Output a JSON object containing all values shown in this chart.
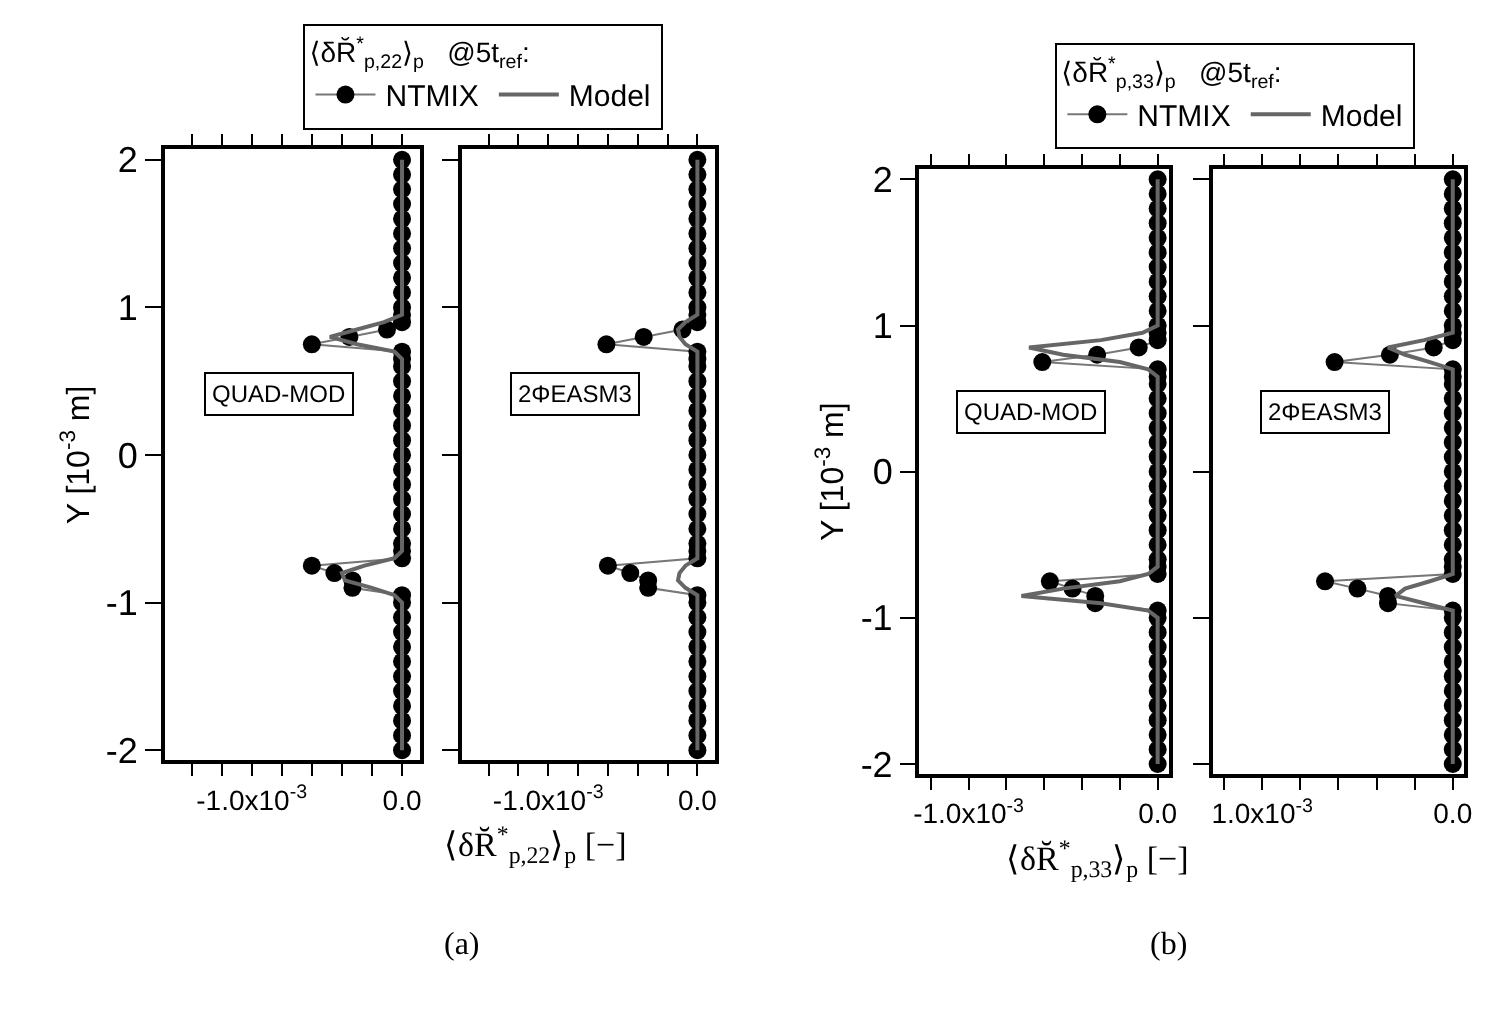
{
  "chart_data": [
    {
      "type": "line",
      "orientation": "horizontal",
      "xlabel": "⟨δR̆$^{*}$$_{p,22}$⟩$_{p}$ [−]",
      "ylabel": "Y [10$^{-3}$ m]",
      "legend": "top",
      "legend_title": "⟨δR̆$^{*}$$_{p,22}$⟩$_{p}$   @5t$_{ref}$:",
      "annotations": [
        "QUAD-MOD",
        "(a)"
      ],
      "xlim": [
        -0.00158,
        0.00012
      ],
      "ylim": [
        -2.07,
        2.07
      ],
      "xticks": [
        {
          "value": -0.0014,
          "label": null
        },
        {
          "value": -0.0012,
          "label": null
        },
        {
          "value": -0.001,
          "label": "-1.0x10$^{-3}$"
        },
        {
          "value": -0.0008,
          "label": null
        },
        {
          "value": -0.0006,
          "label": null
        },
        {
          "value": -0.0004,
          "label": null
        },
        {
          "value": -0.0002,
          "label": null
        },
        {
          "value": 0,
          "label": "0.0"
        }
      ],
      "yticks": [
        -2,
        -1,
        0,
        1,
        2
      ],
      "grid": false,
      "series": [
        {
          "name": "NTMIX",
          "color": "#000000",
          "marker": "circle",
          "x": [
            -2,
            -1.9,
            -1.8,
            -1.7,
            -1.6,
            -1.5,
            -1.4,
            -1.3,
            -1.2,
            -1.1,
            -1,
            -0.95,
            -0.9,
            -0.85,
            -0.8,
            -0.75,
            -0.7,
            -0.65,
            -0.6,
            -0.5,
            -0.4,
            -0.3,
            -0.2,
            -0.1,
            0,
            0.1,
            0.2,
            0.3,
            0.4,
            0.5,
            0.6,
            0.65,
            0.7,
            0.75,
            0.8,
            0.85,
            0.9,
            0.95,
            1,
            1.1,
            1.2,
            1.3,
            1.4,
            1.5,
            1.6,
            1.7,
            1.8,
            1.9,
            2
          ],
          "values": [
            0,
            0,
            0,
            0,
            0,
            0,
            0,
            0,
            0,
            0,
            0,
            0,
            -0.00033,
            -0.00033,
            -0.00045,
            -0.0006,
            0,
            0,
            0,
            0,
            0,
            0,
            0,
            0,
            0,
            0,
            0,
            0,
            0,
            0,
            0,
            0,
            0,
            -0.0006,
            -0.00035,
            -0.0001,
            0,
            0,
            0,
            0,
            0,
            0,
            0,
            0,
            0,
            0,
            0,
            0,
            0
          ]
        },
        {
          "name": "Model",
          "color": "#666666",
          "marker": "none",
          "x": [
            -2,
            -1,
            -0.95,
            -0.9,
            -0.85,
            -0.8,
            -0.75,
            -0.7,
            -0.65,
            0.65,
            0.7,
            0.75,
            0.8,
            0.85,
            0.9,
            0.95,
            1,
            2
          ],
          "values": [
            0,
            0,
            -5e-05,
            -0.0002,
            -0.00038,
            -0.0004,
            -0.00025,
            -5e-05,
            0,
            0,
            -5e-05,
            -0.0003,
            -0.00048,
            -0.0003,
            -0.00012,
            0,
            0,
            0
          ]
        }
      ]
    },
    {
      "type": "line",
      "orientation": "horizontal",
      "tick_labels": "x",
      "annotations": [
        "2ΦEASM3"
      ],
      "xlim": [
        -0.00158,
        0.00012
      ],
      "ylim": [
        -2.07,
        2.07
      ],
      "xticks": [
        {
          "value": -0.0014,
          "label": null
        },
        {
          "value": -0.0012,
          "label": null
        },
        {
          "value": -0.001,
          "label": "-1.0x10$^{-3}$"
        },
        {
          "value": -0.0008,
          "label": null
        },
        {
          "value": -0.0006,
          "label": null
        },
        {
          "value": -0.0004,
          "label": null
        },
        {
          "value": -0.0002,
          "label": null
        },
        {
          "value": 0,
          "label": "0.0"
        }
      ],
      "yticks": [
        -2,
        -1,
        0,
        1,
        2
      ],
      "grid": false,
      "series": [
        {
          "color": "#000000",
          "marker": "circle",
          "x": [
            -2,
            -1.9,
            -1.8,
            -1.7,
            -1.6,
            -1.5,
            -1.4,
            -1.3,
            -1.2,
            -1.1,
            -1,
            -0.95,
            -0.9,
            -0.85,
            -0.8,
            -0.75,
            -0.7,
            -0.65,
            -0.6,
            -0.5,
            -0.4,
            -0.3,
            -0.2,
            -0.1,
            0,
            0.1,
            0.2,
            0.3,
            0.4,
            0.5,
            0.6,
            0.65,
            0.7,
            0.75,
            0.8,
            0.85,
            0.9,
            0.95,
            1,
            1.1,
            1.2,
            1.3,
            1.4,
            1.5,
            1.6,
            1.7,
            1.8,
            1.9,
            2
          ],
          "values": [
            0,
            0,
            0,
            0,
            0,
            0,
            0,
            0,
            0,
            0,
            0,
            0,
            -0.00033,
            -0.00033,
            -0.00045,
            -0.0006,
            0,
            0,
            0,
            0,
            0,
            0,
            0,
            0,
            0,
            0,
            0,
            0,
            0,
            0,
            0,
            0,
            0,
            -0.00061,
            -0.00036,
            -0.0001,
            0,
            0,
            0,
            0,
            0,
            0,
            0,
            0,
            0,
            0,
            0,
            0,
            0
          ]
        },
        {
          "color": "#666666",
          "marker": "none",
          "x": [
            -2,
            -1,
            -0.95,
            -0.9,
            -0.85,
            -0.8,
            -0.75,
            -0.7,
            -0.65,
            0.65,
            0.7,
            0.75,
            0.8,
            0.85,
            0.9,
            0.95,
            1,
            2
          ],
          "values": [
            0,
            0,
            0,
            -8e-05,
            -0.00013,
            -0.00012,
            -8e-05,
            0,
            0,
            0,
            0,
            -8e-05,
            -0.00012,
            -0.00013,
            -8e-05,
            0,
            0,
            0
          ]
        }
      ]
    },
    {
      "type": "line",
      "orientation": "horizontal",
      "xlabel": "⟨δR̆$^{*}$$_{p,33}$⟩$_{p}$ [−]",
      "ylabel": "Y [10$^{-3}$ m]",
      "legend": "top",
      "legend_title": "⟨δR̆$^{*}$$_{p,33}$⟩$_{p}$   @5t$_{ref}$:",
      "annotations": [
        "QUAD-MOD",
        "(b)"
      ],
      "xlim": [
        -0.00126,
        6e-05
      ],
      "ylim": [
        -2.07,
        2.07
      ],
      "xticks": [
        {
          "value": -0.0012,
          "label": null
        },
        {
          "value": -0.001,
          "label": "-1.0x10$^{-3}$"
        },
        {
          "value": -0.0008,
          "label": null
        },
        {
          "value": -0.0006,
          "label": null
        },
        {
          "value": -0.0004,
          "label": null
        },
        {
          "value": -0.0002,
          "label": null
        },
        {
          "value": 0,
          "label": "0.0"
        }
      ],
      "yticks": [
        -2,
        -1,
        0,
        1,
        2
      ],
      "grid": false,
      "series": [
        {
          "name": "NTMIX",
          "color": "#000000",
          "marker": "circle",
          "x": [
            -2,
            -1.9,
            -1.8,
            -1.7,
            -1.6,
            -1.5,
            -1.4,
            -1.3,
            -1.2,
            -1.1,
            -1,
            -0.95,
            -0.9,
            -0.85,
            -0.8,
            -0.75,
            -0.7,
            -0.65,
            -0.6,
            -0.5,
            -0.4,
            -0.3,
            -0.2,
            -0.1,
            0,
            0.1,
            0.2,
            0.3,
            0.4,
            0.5,
            0.6,
            0.65,
            0.7,
            0.75,
            0.8,
            0.85,
            0.9,
            0.95,
            1,
            1.1,
            1.2,
            1.3,
            1.4,
            1.5,
            1.6,
            1.7,
            1.8,
            1.9,
            2
          ],
          "values": [
            0,
            0,
            0,
            0,
            0,
            0,
            0,
            0,
            0,
            0,
            0,
            0,
            -0.00033,
            -0.00033,
            -0.00045,
            -0.00057,
            0,
            0,
            0,
            0,
            0,
            0,
            0,
            0,
            0,
            0,
            0,
            0,
            0,
            0,
            0,
            0,
            0,
            -0.00061,
            -0.00032,
            -0.0001,
            0,
            0,
            0,
            0,
            0,
            0,
            0,
            0,
            0,
            0,
            0,
            0,
            0
          ]
        },
        {
          "name": "Model",
          "color": "#666666",
          "marker": "none",
          "x": [
            -2,
            -1,
            -0.95,
            -0.9,
            -0.85,
            -0.8,
            -0.75,
            -0.7,
            -0.65,
            0.65,
            0.7,
            0.75,
            0.8,
            0.85,
            0.9,
            0.95,
            1,
            2
          ],
          "values": [
            0,
            0,
            -5e-05,
            -0.0003,
            -0.00072,
            -0.0005,
            -0.0002,
            -5e-05,
            0,
            0,
            -5e-05,
            -0.0002,
            -0.0005,
            -0.00068,
            -0.0003,
            -8e-05,
            0,
            0
          ]
        }
      ]
    },
    {
      "type": "line",
      "orientation": "horizontal",
      "tick_labels": "x",
      "annotations": [
        "2ΦEASM3"
      ],
      "xlim": [
        -0.00126,
        6e-05
      ],
      "ylim": [
        -2.07,
        2.07
      ],
      "xticks": [
        {
          "value": -0.0012,
          "label": null
        },
        {
          "value": -0.001,
          "label": "1.0x10$^{-3}$"
        },
        {
          "value": -0.0008,
          "label": null
        },
        {
          "value": -0.0006,
          "label": null
        },
        {
          "value": -0.0004,
          "label": null
        },
        {
          "value": -0.0002,
          "label": null
        },
        {
          "value": 0,
          "label": "0.0"
        }
      ],
      "yticks": [
        -2,
        -1,
        0,
        1,
        2
      ],
      "grid": false,
      "series": [
        {
          "color": "#000000",
          "marker": "circle",
          "x": [
            -2,
            -1.9,
            -1.8,
            -1.7,
            -1.6,
            -1.5,
            -1.4,
            -1.3,
            -1.2,
            -1.1,
            -1,
            -0.95,
            -0.9,
            -0.85,
            -0.8,
            -0.75,
            -0.7,
            -0.65,
            -0.6,
            -0.5,
            -0.4,
            -0.3,
            -0.2,
            -0.1,
            0,
            0.1,
            0.2,
            0.3,
            0.4,
            0.5,
            0.6,
            0.65,
            0.7,
            0.75,
            0.8,
            0.85,
            0.9,
            0.95,
            1,
            1.1,
            1.2,
            1.3,
            1.4,
            1.5,
            1.6,
            1.7,
            1.8,
            1.9,
            2
          ],
          "values": [
            0,
            0,
            0,
            0,
            0,
            0,
            0,
            0,
            0,
            0,
            0,
            0,
            -0.00034,
            -0.00034,
            -0.0005,
            -0.00067,
            0,
            0,
            0,
            0,
            0,
            0,
            0,
            0,
            0,
            0,
            0,
            0,
            0,
            0,
            0,
            0,
            0,
            -0.00062,
            -0.00033,
            -0.0001,
            0,
            0,
            0,
            0,
            0,
            0,
            0,
            0,
            0,
            0,
            0,
            0,
            0
          ]
        },
        {
          "color": "#666666",
          "marker": "none",
          "x": [
            -2,
            -1,
            -0.95,
            -0.9,
            -0.85,
            -0.8,
            -0.75,
            -0.7,
            -0.65,
            0.65,
            0.7,
            0.75,
            0.8,
            0.85,
            0.9,
            0.95,
            1,
            2
          ],
          "values": [
            0,
            0,
            0,
            -0.00015,
            -0.0003,
            -0.00025,
            -0.00012,
            0,
            0,
            0,
            0,
            -0.00012,
            -0.00025,
            -0.00034,
            -0.00015,
            0,
            0,
            0
          ]
        }
      ]
    }
  ]
}
